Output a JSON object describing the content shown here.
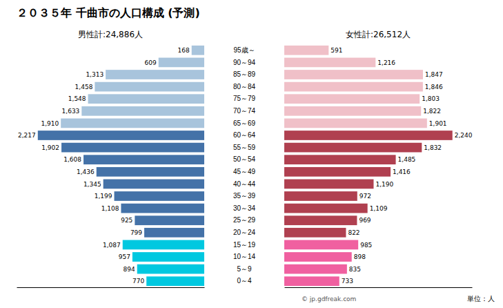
{
  "chart_data": {
    "type": "bar",
    "orientation": "horizontal",
    "title": "２０３５年 千曲市の人口構成 (予測)",
    "categories": [
      "0～4",
      "5～9",
      "10～14",
      "15～19",
      "20～24",
      "25～29",
      "30～34",
      "35～39",
      "40～44",
      "45～49",
      "50～54",
      "55～59",
      "60～64",
      "65～69",
      "70～74",
      "75～79",
      "80～84",
      "85～89",
      "90～94",
      "95歳～"
    ],
    "series": [
      {
        "name": "男性計:24,886人",
        "values": [
          770,
          894,
          957,
          1087,
          799,
          925,
          1108,
          1199,
          1345,
          1436,
          1608,
          1902,
          2217,
          1910,
          1633,
          1548,
          1458,
          1313,
          609,
          168
        ],
        "value_labels": [
          "770",
          "894",
          "957",
          "1,087",
          "799",
          "925",
          "1,108",
          "1,199",
          "1,345",
          "1,436",
          "1,608",
          "1,902",
          "2,217",
          "1,910",
          "1,633",
          "1,548",
          "1,458",
          "1,313",
          "609",
          "168"
        ],
        "colors": [
          "#00c8e0",
          "#00c8e0",
          "#00c8e0",
          "#00c8e0",
          "#4472a8",
          "#4472a8",
          "#4472a8",
          "#4472a8",
          "#4472a8",
          "#4472a8",
          "#4472a8",
          "#4472a8",
          "#4472a8",
          "#a8c4dc",
          "#a8c4dc",
          "#a8c4dc",
          "#a8c4dc",
          "#a8c4dc",
          "#a8c4dc",
          "#a8c4dc"
        ]
      },
      {
        "name": "女性計:26,512人",
        "values": [
          733,
          835,
          898,
          985,
          822,
          969,
          1109,
          972,
          1190,
          1416,
          1485,
          1832,
          2240,
          1901,
          1822,
          1803,
          1846,
          1847,
          1216,
          591
        ],
        "value_labels": [
          "733",
          "835",
          "898",
          "985",
          "822",
          "969",
          "1,109",
          "972",
          "1,190",
          "1,416",
          "1,485",
          "1,832",
          "2,240",
          "1,901",
          "1,822",
          "1,803",
          "1,846",
          "1,847",
          "1,216",
          "591"
        ],
        "colors": [
          "#f060a0",
          "#f060a0",
          "#f060a0",
          "#f060a0",
          "#b04050",
          "#b04050",
          "#b04050",
          "#b04050",
          "#b04050",
          "#b04050",
          "#b04050",
          "#b04050",
          "#b04050",
          "#f0c0c8",
          "#f0c0c8",
          "#f0c0c8",
          "#f0c0c8",
          "#f0c0c8",
          "#f0c0c8",
          "#f0c0c8"
        ]
      }
    ],
    "xlim": [
      0,
      2500
    ],
    "data_labels": true,
    "tick_labels": "y",
    "grid": false,
    "annotations": [
      "単位：人",
      "© jp.gdfreak.com"
    ]
  }
}
